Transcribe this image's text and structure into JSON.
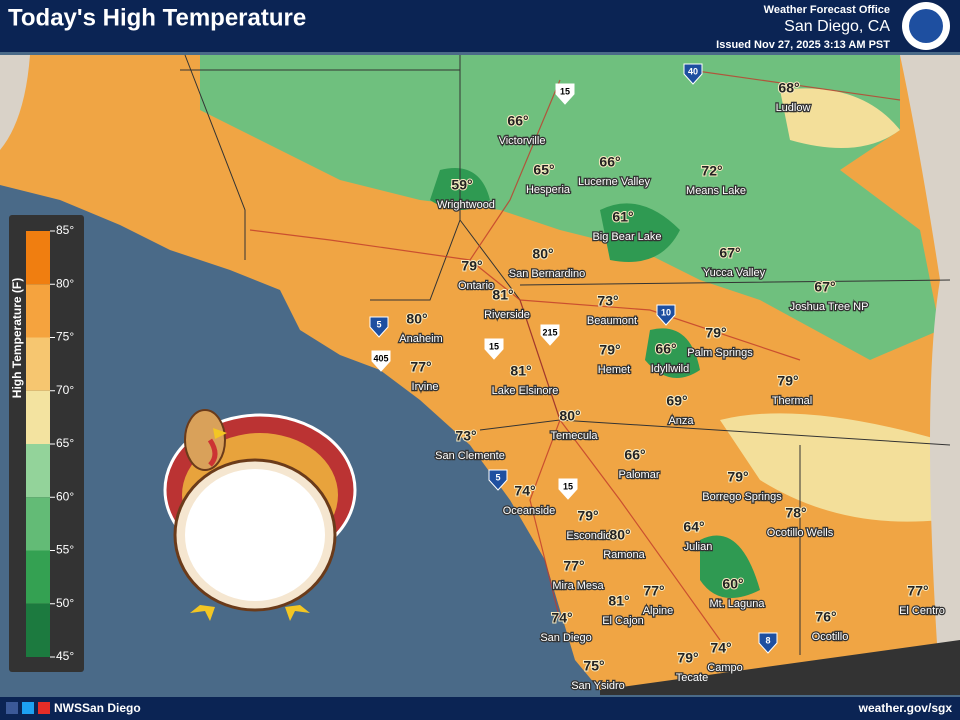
{
  "header": {
    "title": "Today's High Temperature",
    "office_line": "Weather Forecast Office",
    "office": "San Diego, CA",
    "issued": "Issued Nov 27, 2025 3:13 AM PST"
  },
  "legend": {
    "title": "High Temperature (F)",
    "ticks": [
      "85°",
      "80°",
      "75°",
      "70°",
      "65°",
      "60°",
      "55°",
      "50°",
      "45°"
    ]
  },
  "highways": [
    "40",
    "15",
    "10",
    "215",
    "5",
    "15",
    "405",
    "5",
    "15",
    "8"
  ],
  "cities": [
    {
      "name": "Ludlow",
      "temp": "68°"
    },
    {
      "name": "Victorville",
      "temp": "66°"
    },
    {
      "name": "Hesperia",
      "temp": "65°"
    },
    {
      "name": "Lucerne Valley",
      "temp": "66°"
    },
    {
      "name": "Means Lake",
      "temp": "72°"
    },
    {
      "name": "Wrightwood",
      "temp": "59°"
    },
    {
      "name": "Big Bear Lake",
      "temp": "61°"
    },
    {
      "name": "San Bernardino",
      "temp": "80°"
    },
    {
      "name": "Ontario",
      "temp": "79°"
    },
    {
      "name": "Yucca Valley",
      "temp": "67°"
    },
    {
      "name": "Joshua Tree NP",
      "temp": "67°"
    },
    {
      "name": "Riverside",
      "temp": "81°"
    },
    {
      "name": "Beaumont",
      "temp": "73°"
    },
    {
      "name": "Anaheim",
      "temp": "80°"
    },
    {
      "name": "Irvine",
      "temp": "77°"
    },
    {
      "name": "Hemet",
      "temp": "79°"
    },
    {
      "name": "Idyllwild",
      "temp": "66°"
    },
    {
      "name": "Palm Springs",
      "temp": "79°"
    },
    {
      "name": "Lake Elsinore",
      "temp": "81°"
    },
    {
      "name": "Thermal",
      "temp": "79°"
    },
    {
      "name": "Anza",
      "temp": "69°"
    },
    {
      "name": "Temecula",
      "temp": "80°"
    },
    {
      "name": "San Clemente",
      "temp": "73°"
    },
    {
      "name": "Palomar",
      "temp": "66°"
    },
    {
      "name": "Borrego Springs",
      "temp": "79°"
    },
    {
      "name": "Oceanside",
      "temp": "74°"
    },
    {
      "name": "Ocotillo Wells",
      "temp": "78°"
    },
    {
      "name": "Escondido",
      "temp": "79°"
    },
    {
      "name": "Ramona",
      "temp": "80°"
    },
    {
      "name": "Julian",
      "temp": "64°"
    },
    {
      "name": "Mira Mesa",
      "temp": "77°"
    },
    {
      "name": "Alpine",
      "temp": "77°"
    },
    {
      "name": "Mt. Laguna",
      "temp": "60°"
    },
    {
      "name": "El Cajon",
      "temp": "81°"
    },
    {
      "name": "El Centro",
      "temp": "77°"
    },
    {
      "name": "Ocotillo",
      "temp": "76°"
    },
    {
      "name": "San Diego",
      "temp": "74°"
    },
    {
      "name": "Campo",
      "temp": "74°"
    },
    {
      "name": "Tecate",
      "temp": "79°"
    },
    {
      "name": "San Ysidro",
      "temp": "75°"
    }
  ],
  "footer": {
    "social": "NWSSan Diego",
    "url": "weather.gov/sgx"
  }
}
